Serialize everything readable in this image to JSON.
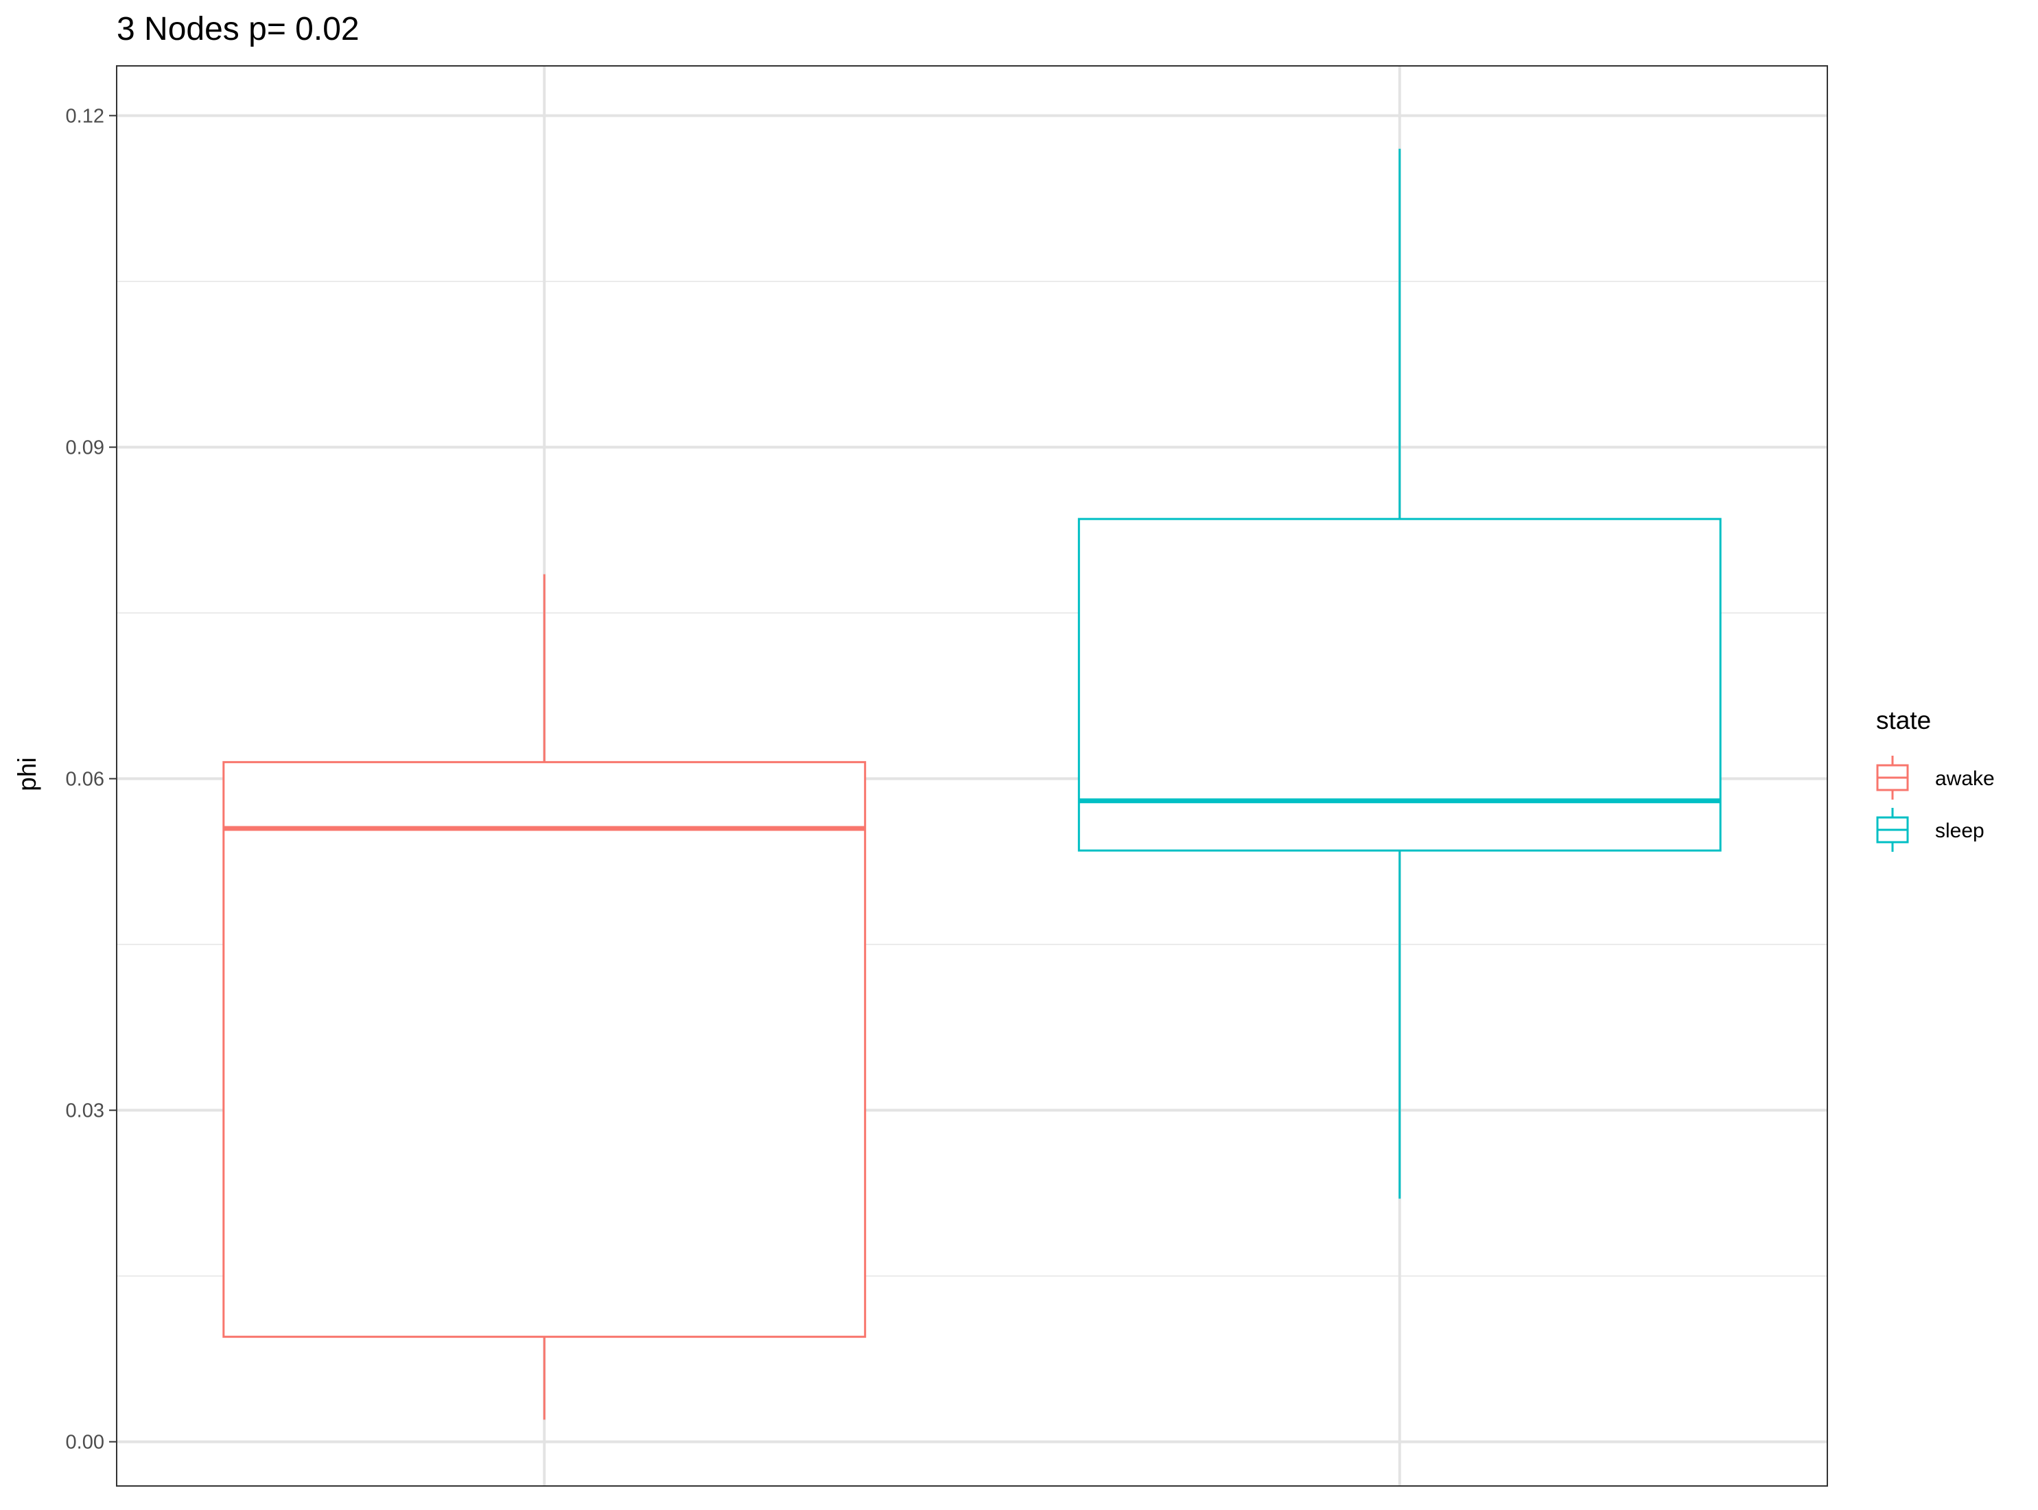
{
  "chart_data": {
    "type": "box",
    "title": "3 Nodes p= 0.02",
    "xlabel": "",
    "ylabel": "phi",
    "ylim": [
      -0.004,
      0.1245
    ],
    "yticks": [
      "0.00",
      "0.03",
      "0.06",
      "0.09",
      "0.12"
    ],
    "ytick_values": [
      0.0,
      0.03,
      0.06,
      0.09,
      0.12
    ],
    "grid": true,
    "legend": {
      "title": "state",
      "placement": "right",
      "entries": [
        "awake",
        "sleep"
      ]
    },
    "series": [
      {
        "name": "awake",
        "color": "#F8766D",
        "whisker_low": 0.002,
        "q1": 0.0095,
        "median": 0.0555,
        "q3": 0.0615,
        "whisker_high": 0.0785
      },
      {
        "name": "sleep",
        "color": "#00BFC4",
        "whisker_low": 0.022,
        "q1": 0.0535,
        "median": 0.058,
        "q3": 0.0835,
        "whisker_high": 0.117
      }
    ]
  }
}
